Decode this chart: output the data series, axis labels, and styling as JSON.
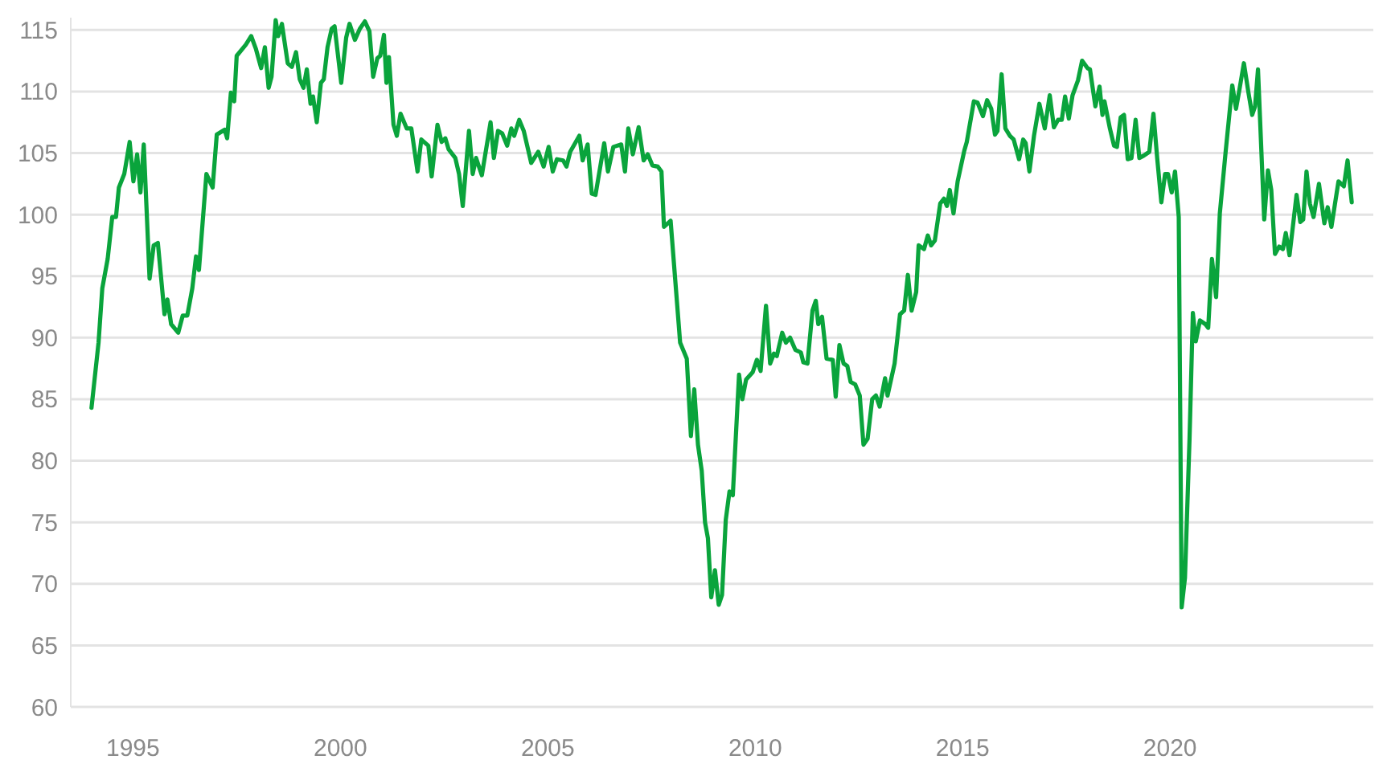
{
  "chart_data": {
    "type": "line",
    "grid": "y",
    "marker": "none",
    "line_style": "solid",
    "xlim": [
      1993.5,
      2024.9
    ],
    "xticks": [
      1995,
      2000,
      2005,
      2010,
      2015,
      2020
    ],
    "ylim": [
      60,
      116
    ],
    "yticks": [
      60,
      65,
      70,
      75,
      80,
      85,
      90,
      95,
      100,
      105,
      110,
      115
    ],
    "series": [
      {
        "color": "#0aa43c",
        "x": [
          1994.0,
          1994.17,
          1994.26,
          1994.39,
          1994.5,
          1994.59,
          1994.66,
          1994.79,
          1994.92,
          1995.01,
          1995.1,
          1995.18,
          1995.26,
          1995.4,
          1995.5,
          1995.6,
          1995.76,
          1995.83,
          1995.92,
          1996.09,
          1996.2,
          1996.31,
          1996.43,
          1996.52,
          1996.59,
          1996.77,
          1996.92,
          1997.02,
          1997.21,
          1997.27,
          1997.36,
          1997.44,
          1997.5,
          1997.72,
          1997.85,
          1997.96,
          1998.09,
          1998.18,
          1998.27,
          1998.34,
          1998.44,
          1998.5,
          1998.59,
          1998.73,
          1998.83,
          1998.93,
          1999.02,
          1999.11,
          1999.19,
          1999.28,
          1999.34,
          1999.43,
          1999.53,
          1999.6,
          1999.69,
          1999.79,
          1999.86,
          2000.02,
          2000.14,
          2000.22,
          2000.35,
          2000.47,
          2000.59,
          2000.7,
          2000.79,
          2000.89,
          2000.96,
          2001.05,
          2001.11,
          2001.17,
          2001.28,
          2001.36,
          2001.45,
          2001.6,
          2001.71,
          2001.86,
          2001.95,
          2002.12,
          2002.2,
          2002.34,
          2002.44,
          2002.53,
          2002.61,
          2002.77,
          2002.86,
          2002.95,
          2003.1,
          2003.19,
          2003.27,
          2003.41,
          2003.62,
          2003.7,
          2003.8,
          2003.9,
          2004.02,
          2004.12,
          2004.19,
          2004.31,
          2004.42,
          2004.6,
          2004.77,
          2004.9,
          2005.02,
          2005.12,
          2005.22,
          2005.37,
          2005.45,
          2005.54,
          2005.76,
          2005.84,
          2005.96,
          2006.06,
          2006.15,
          2006.36,
          2006.45,
          2006.58,
          2006.77,
          2006.86,
          2006.94,
          2007.05,
          2007.19,
          2007.31,
          2007.41,
          2007.52,
          2007.65,
          2007.74,
          2007.8,
          2007.96,
          2008.19,
          2008.35,
          2008.45,
          2008.53,
          2008.62,
          2008.71,
          2008.79,
          2008.86,
          2008.94,
          2009.03,
          2009.12,
          2009.2,
          2009.29,
          2009.38,
          2009.46,
          2009.61,
          2009.69,
          2009.78,
          2009.94,
          2010.04,
          2010.13,
          2010.26,
          2010.36,
          2010.45,
          2010.52,
          2010.65,
          2010.74,
          2010.84,
          2010.97,
          2011.1,
          2011.16,
          2011.26,
          2011.38,
          2011.46,
          2011.52,
          2011.61,
          2011.72,
          2011.87,
          2011.94,
          2012.03,
          2012.13,
          2012.22,
          2012.3,
          2012.41,
          2012.52,
          2012.61,
          2012.71,
          2012.82,
          2012.91,
          2013.0,
          2013.13,
          2013.19,
          2013.36,
          2013.49,
          2013.59,
          2013.68,
          2013.77,
          2013.88,
          2013.94,
          2014.07,
          2014.16,
          2014.24,
          2014.33,
          2014.46,
          2014.55,
          2014.62,
          2014.69,
          2014.78,
          2014.88,
          2015.04,
          2015.1,
          2015.27,
          2015.36,
          2015.49,
          2015.59,
          2015.69,
          2015.78,
          2015.84,
          2015.94,
          2016.03,
          2016.14,
          2016.23,
          2016.36,
          2016.46,
          2016.52,
          2016.61,
          2016.72,
          2016.85,
          2016.98,
          2017.1,
          2017.2,
          2017.3,
          2017.39,
          2017.47,
          2017.56,
          2017.65,
          2017.78,
          2017.88,
          2018.01,
          2018.07,
          2018.2,
          2018.3,
          2018.37,
          2018.42,
          2018.55,
          2018.65,
          2018.72,
          2018.81,
          2018.89,
          2018.98,
          2019.07,
          2019.17,
          2019.26,
          2019.37,
          2019.5,
          2019.6,
          2019.69,
          2019.79,
          2019.88,
          2019.95,
          2020.04,
          2020.12,
          2020.21,
          2020.28,
          2020.36,
          2020.47,
          2020.55,
          2020.62,
          2020.72,
          2020.85,
          2020.92,
          2021.01,
          2021.11,
          2021.2,
          2021.34,
          2021.5,
          2021.59,
          2021.67,
          2021.78,
          2021.89,
          2021.98,
          2022.05,
          2022.12,
          2022.27,
          2022.36,
          2022.44,
          2022.53,
          2022.63,
          2022.72,
          2022.79,
          2022.88,
          2023.05,
          2023.14,
          2023.21,
          2023.29,
          2023.37,
          2023.46,
          2023.59,
          2023.72,
          2023.8,
          2023.89,
          2024.06,
          2024.19,
          2024.28,
          2024.38
        ],
        "values": [
          84.3,
          89.6,
          94.0,
          96.4,
          99.8,
          99.8,
          102.2,
          103.3,
          105.9,
          102.7,
          104.9,
          101.8,
          105.7,
          94.8,
          97.5,
          97.7,
          91.9,
          93.1,
          91.1,
          90.4,
          91.8,
          91.8,
          94.0,
          96.6,
          95.5,
          103.3,
          102.2,
          106.5,
          106.9,
          106.2,
          109.9,
          109.2,
          112.9,
          113.8,
          114.5,
          113.5,
          111.9,
          113.6,
          110.3,
          111.2,
          115.8,
          114.5,
          115.5,
          112.3,
          112.0,
          113.2,
          111.0,
          110.3,
          111.8,
          109.0,
          109.6,
          107.5,
          110.7,
          111.0,
          113.6,
          115.1,
          115.3,
          110.7,
          114.4,
          115.5,
          114.2,
          115.1,
          115.7,
          114.9,
          111.2,
          112.7,
          112.9,
          114.6,
          110.7,
          112.8,
          107.3,
          106.4,
          108.2,
          107.0,
          107.0,
          103.5,
          106.1,
          105.6,
          103.1,
          107.3,
          105.9,
          106.2,
          105.3,
          104.6,
          103.3,
          100.7,
          106.8,
          103.3,
          104.6,
          103.2,
          107.5,
          104.6,
          106.8,
          106.6,
          105.6,
          107.0,
          106.4,
          107.7,
          106.8,
          104.2,
          105.1,
          103.9,
          105.5,
          103.5,
          104.5,
          104.4,
          103.9,
          105.1,
          106.4,
          104.4,
          105.7,
          101.7,
          101.6,
          105.8,
          103.5,
          105.5,
          105.7,
          103.5,
          107.0,
          104.9,
          107.1,
          104.4,
          104.9,
          104.0,
          103.9,
          103.5,
          99.0,
          99.5,
          89.6,
          88.3,
          82.0,
          85.8,
          81.3,
          79.2,
          75.0,
          73.7,
          68.9,
          71.1,
          68.3,
          69.1,
          75.2,
          77.5,
          77.2,
          87.0,
          85.0,
          86.6,
          87.2,
          88.2,
          87.3,
          92.6,
          87.9,
          88.7,
          88.5,
          90.4,
          89.6,
          90.0,
          89.0,
          88.8,
          88.0,
          87.9,
          92.2,
          93.0,
          91.1,
          91.7,
          88.3,
          88.2,
          85.2,
          89.4,
          87.9,
          87.7,
          86.4,
          86.2,
          85.3,
          81.3,
          81.8,
          85.0,
          85.3,
          84.4,
          86.7,
          85.3,
          87.9,
          91.9,
          92.2,
          95.1,
          92.2,
          93.7,
          97.5,
          97.2,
          98.3,
          97.5,
          97.9,
          100.9,
          101.3,
          100.7,
          102.0,
          100.1,
          102.7,
          105.2,
          105.9,
          109.2,
          109.1,
          108.0,
          109.3,
          108.6,
          106.5,
          106.8,
          111.4,
          107.0,
          106.4,
          106.1,
          104.5,
          106.1,
          105.8,
          103.5,
          106.4,
          109.0,
          107.0,
          109.7,
          107.1,
          107.7,
          107.7,
          109.6,
          107.8,
          109.7,
          110.9,
          112.5,
          111.9,
          111.8,
          108.8,
          110.4,
          108.1,
          109.2,
          107.0,
          105.6,
          105.5,
          107.9,
          108.1,
          104.5,
          104.6,
          107.7,
          104.6,
          104.8,
          105.1,
          108.2,
          104.6,
          101.0,
          103.3,
          103.3,
          101.8,
          103.5,
          99.8,
          68.1,
          70.5,
          81.8,
          92.0,
          89.7,
          91.4,
          91.1,
          90.8,
          96.4,
          93.3,
          100.1,
          105.1,
          110.5,
          108.6,
          110.1,
          112.3,
          109.9,
          108.1,
          108.8,
          111.8,
          99.6,
          103.6,
          102.0,
          96.8,
          97.4,
          97.2,
          98.5,
          96.7,
          101.6,
          99.4,
          99.6,
          103.5,
          100.9,
          99.8,
          102.5,
          99.3,
          100.6,
          99.0,
          102.7,
          102.3,
          104.4,
          101.0
        ]
      }
    ]
  }
}
